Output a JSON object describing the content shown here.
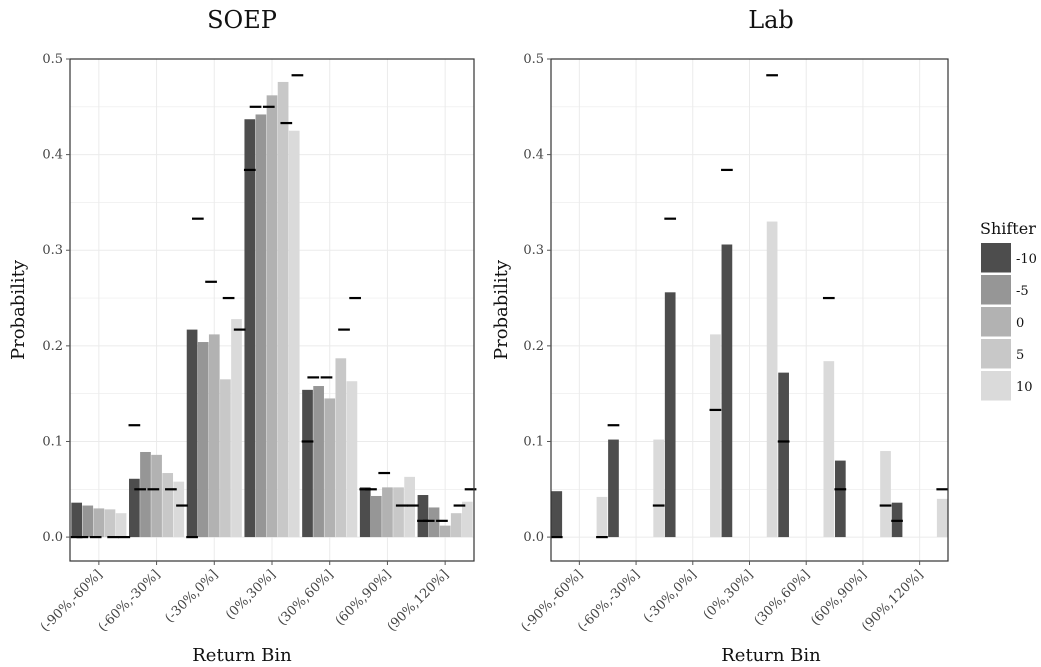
{
  "chart_data": [
    {
      "type": "bar",
      "title": "SOEP",
      "xlabel": "Return Bin",
      "ylabel": "Probability",
      "ylim": [
        -0.025,
        0.5
      ],
      "yticks": [
        "0.0",
        "0.1",
        "0.2",
        "0.3",
        "0.4",
        "0.5"
      ],
      "grid": true,
      "categories": [
        "(-90%,-60%]",
        "(-60%,-30%]",
        "(-30%,0%]",
        "(0%,30%]",
        "(30%,60%]",
        "(60%,90%]",
        "(90%,120%]"
      ],
      "series": [
        {
          "name": "-10",
          "values": [
            0.036,
            0.061,
            0.217,
            0.437,
            0.154,
            0.052,
            0.044
          ],
          "markers": [
            0.0,
            0.117,
            0.0,
            0.384,
            0.1,
            0.05,
            0.017
          ]
        },
        {
          "name": "-5",
          "values": [
            0.033,
            0.089,
            0.204,
            0.442,
            0.158,
            0.043,
            0.031
          ],
          "markers": [
            0.0,
            0.05,
            0.333,
            0.45,
            0.167,
            0.05,
            0.017
          ]
        },
        {
          "name": "0",
          "values": [
            0.03,
            0.086,
            0.212,
            0.462,
            0.145,
            0.052,
            0.012
          ],
          "markers": [
            0.0,
            0.05,
            0.267,
            0.45,
            0.167,
            0.067,
            0.017
          ]
        },
        {
          "name": "5",
          "values": [
            0.029,
            0.067,
            0.165,
            0.476,
            0.187,
            0.052,
            0.025
          ],
          "markers": [
            0.0,
            0.05,
            0.25,
            0.433,
            0.217,
            0.033,
            0.033
          ]
        },
        {
          "name": "10",
          "values": [
            0.025,
            0.058,
            0.228,
            0.425,
            0.163,
            0.063,
            0.037
          ],
          "markers": [
            0.0,
            0.033,
            0.217,
            0.483,
            0.25,
            0.033,
            0.05
          ]
        }
      ],
      "marker_offsets": [
        [
          0,
          0
        ],
        [
          -0.5,
          0
        ],
        [
          -0.3,
          0
        ],
        [
          0.3,
          0
        ],
        [
          0.3,
          0
        ]
      ]
    },
    {
      "type": "bar",
      "title": "Lab",
      "xlabel": "Return Bin",
      "ylabel": "Probability",
      "ylim": [
        -0.025,
        0.5
      ],
      "yticks": [
        "0.0",
        "0.1",
        "0.2",
        "0.3",
        "0.4",
        "0.5"
      ],
      "grid": true,
      "categories": [
        "(-90%,-60%]",
        "(-60%,-30%]",
        "(-30%,0%]",
        "(0%,30%]",
        "(30%,60%]",
        "(60%,90%]",
        "(90%,120%]"
      ],
      "series": [
        {
          "name": "-10",
          "values": [
            0.048,
            0.102,
            0.256,
            0.306,
            0.172,
            0.08,
            0.036
          ],
          "markers": [
            0.0,
            0.117,
            0.333,
            0.384,
            0.1,
            0.05,
            0.017
          ]
        },
        {
          "name": "10",
          "values": [
            0.042,
            0.102,
            0.212,
            0.33,
            0.184,
            0.09,
            0.04
          ],
          "markers": [
            0.0,
            0.033,
            0.133,
            0.483,
            0.25,
            0.033,
            0.05
          ]
        }
      ]
    }
  ],
  "legend": {
    "title": "Shifter",
    "placement": "right",
    "items": [
      {
        "label": "-10",
        "color": "#4d4d4d"
      },
      {
        "label": "-5",
        "color": "#969696"
      },
      {
        "label": "0",
        "color": "#b2b2b2"
      },
      {
        "label": "5",
        "color": "#c8c8c8"
      },
      {
        "label": "10",
        "color": "#dadada"
      }
    ]
  },
  "colors": {
    "panel_border": "#333333",
    "grid": "#ebebeb",
    "marker": "#000000"
  }
}
